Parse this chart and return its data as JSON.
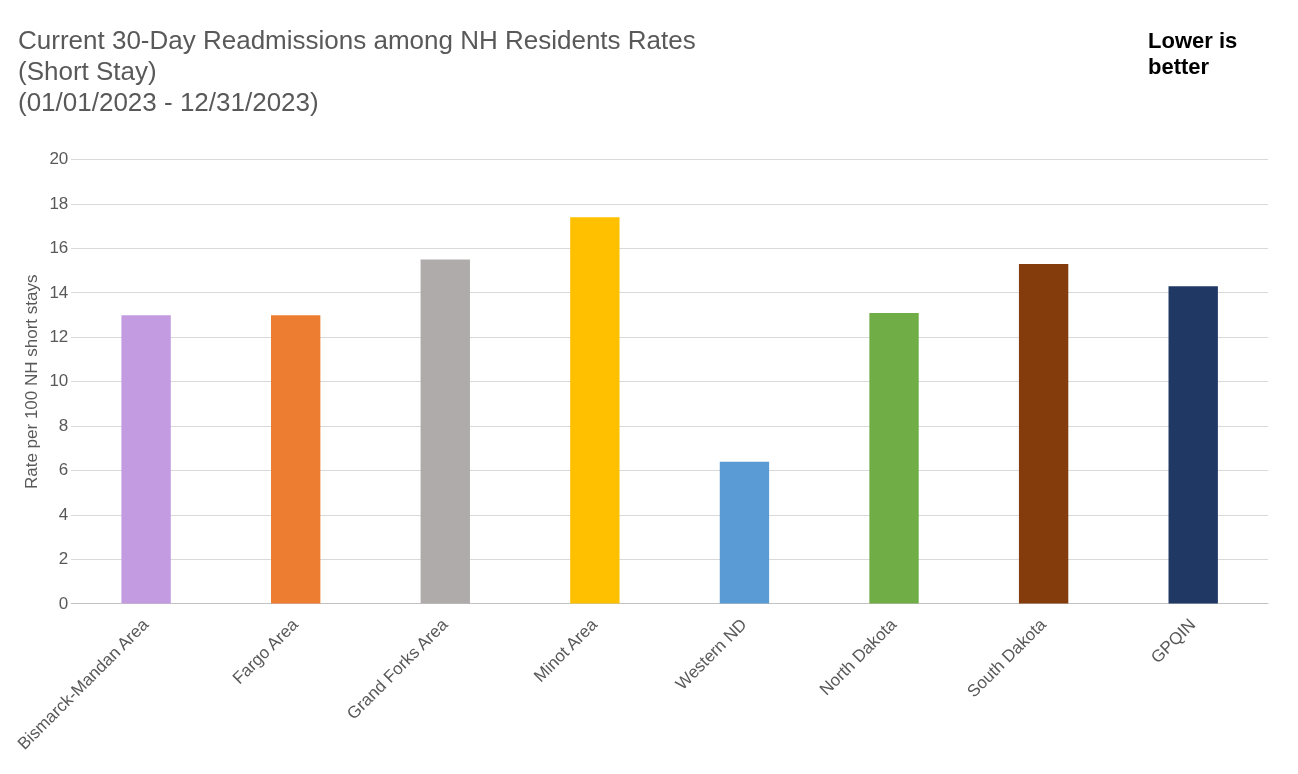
{
  "chart_data": {
    "type": "bar",
    "title": "Current 30-Day Readmissions among NH Residents Rates\n(Short Stay)\n(01/01/2023 - 12/31/2023)",
    "ylabel": "Rate per 100 NH short stays",
    "annotations": [
      "Lower is better"
    ],
    "categories": [
      "Bismarck-Mandan Area",
      "Fargo Area",
      "Grand Forks Area",
      "Minot Area",
      "Western ND",
      "North Dakota",
      "South Dakota",
      "GPQIN"
    ],
    "values": [
      13.0,
      13.0,
      15.5,
      17.4,
      6.4,
      13.1,
      15.3,
      14.3
    ],
    "colors": [
      "#c39be0",
      "#ed7d31",
      "#afabab",
      "#ffc000",
      "#5b9bd5",
      "#70ad47",
      "#843c0c",
      "#203864"
    ],
    "ylim": [
      0,
      20
    ],
    "yticks": [
      0,
      2,
      4,
      6,
      8,
      10,
      12,
      14,
      16,
      18,
      20
    ],
    "grid": "y",
    "legend": false
  }
}
